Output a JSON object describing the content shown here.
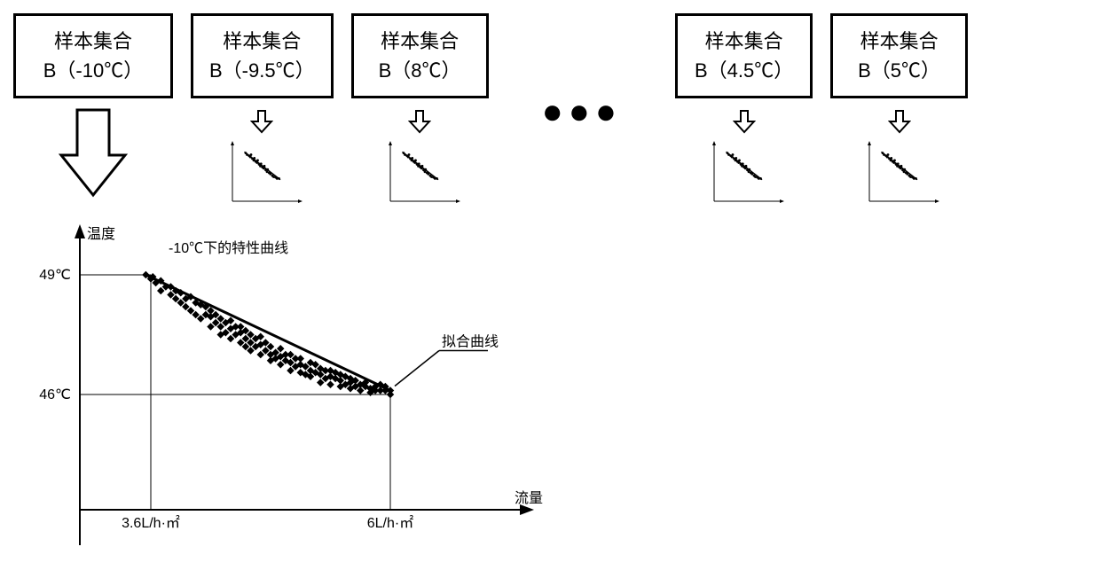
{
  "boxes": [
    {
      "line1": "样本集合",
      "line2": "B（-10℃）"
    },
    {
      "line1": "样本集合",
      "line2": "B（-9.5℃）"
    },
    {
      "line1": "样本集合",
      "line2": "B（8℃）"
    },
    {
      "line1": "样本集合",
      "line2": "B（4.5℃）"
    },
    {
      "line1": "样本集合",
      "line2": "B（5℃）"
    }
  ],
  "ellipsis": "●●●",
  "main_chart": {
    "title": "-10℃下的特性曲线",
    "y_label": "温度",
    "x_label": "流量",
    "y_ticks": [
      "49℃",
      "46℃"
    ],
    "x_ticks": [
      "3.6L/h·㎡",
      "6L/h·㎡"
    ],
    "fit_label": "拟合曲线",
    "y_tick_pos": [
      49,
      46
    ],
    "x_tick_pos": [
      3.6,
      6.0
    ],
    "xlim": [
      3.0,
      7.5
    ],
    "ylim": [
      44,
      50
    ],
    "scatter_color": "#000000",
    "line_color": "#000000",
    "axis_color": "#000000",
    "background": "#ffffff",
    "scatter": [
      [
        3.55,
        49.0
      ],
      [
        3.6,
        48.9
      ],
      [
        3.62,
        48.95
      ],
      [
        3.65,
        48.8
      ],
      [
        3.7,
        48.85
      ],
      [
        3.7,
        48.6
      ],
      [
        3.75,
        48.7
      ],
      [
        3.8,
        48.5
      ],
      [
        3.8,
        48.7
      ],
      [
        3.85,
        48.4
      ],
      [
        3.85,
        48.6
      ],
      [
        3.9,
        48.3
      ],
      [
        3.9,
        48.55
      ],
      [
        3.95,
        48.2
      ],
      [
        3.95,
        48.4
      ],
      [
        4.0,
        48.45
      ],
      [
        4.0,
        48.1
      ],
      [
        4.05,
        48.3
      ],
      [
        4.05,
        48.0
      ],
      [
        4.1,
        48.25
      ],
      [
        4.1,
        47.9
      ],
      [
        4.15,
        48.0
      ],
      [
        4.15,
        48.2
      ],
      [
        4.2,
        47.95
      ],
      [
        4.2,
        47.7
      ],
      [
        4.2,
        48.1
      ],
      [
        4.25,
        47.8
      ],
      [
        4.25,
        48.0
      ],
      [
        4.3,
        47.7
      ],
      [
        4.3,
        47.9
      ],
      [
        4.3,
        47.5
      ],
      [
        4.35,
        47.8
      ],
      [
        4.35,
        47.55
      ],
      [
        4.4,
        47.65
      ],
      [
        4.4,
        47.4
      ],
      [
        4.4,
        47.85
      ],
      [
        4.45,
        47.5
      ],
      [
        4.45,
        47.7
      ],
      [
        4.5,
        47.55
      ],
      [
        4.5,
        47.3
      ],
      [
        4.5,
        47.7
      ],
      [
        4.55,
        47.4
      ],
      [
        4.55,
        47.2
      ],
      [
        4.55,
        47.6
      ],
      [
        4.6,
        47.3
      ],
      [
        4.6,
        47.5
      ],
      [
        4.6,
        47.1
      ],
      [
        4.65,
        47.2
      ],
      [
        4.65,
        47.4
      ],
      [
        4.7,
        47.25
      ],
      [
        4.7,
        47.0
      ],
      [
        4.7,
        47.45
      ],
      [
        4.75,
        47.1
      ],
      [
        4.75,
        47.3
      ],
      [
        4.8,
        47.0
      ],
      [
        4.8,
        47.2
      ],
      [
        4.8,
        46.85
      ],
      [
        4.85,
        47.05
      ],
      [
        4.85,
        46.9
      ],
      [
        4.9,
        46.95
      ],
      [
        4.9,
        47.15
      ],
      [
        4.9,
        46.75
      ],
      [
        4.95,
        46.85
      ],
      [
        4.95,
        47.0
      ],
      [
        5.0,
        46.8
      ],
      [
        5.0,
        46.6
      ],
      [
        5.0,
        47.0
      ],
      [
        5.05,
        46.9
      ],
      [
        5.05,
        46.7
      ],
      [
        5.1,
        46.75
      ],
      [
        5.1,
        46.55
      ],
      [
        5.1,
        46.9
      ],
      [
        5.15,
        46.7
      ],
      [
        5.15,
        46.5
      ],
      [
        5.2,
        46.6
      ],
      [
        5.2,
        46.8
      ],
      [
        5.2,
        46.45
      ],
      [
        5.25,
        46.55
      ],
      [
        5.25,
        46.75
      ],
      [
        5.3,
        46.5
      ],
      [
        5.3,
        46.3
      ],
      [
        5.3,
        46.65
      ],
      [
        5.35,
        46.6
      ],
      [
        5.35,
        46.4
      ],
      [
        5.4,
        46.45
      ],
      [
        5.4,
        46.25
      ],
      [
        5.4,
        46.6
      ],
      [
        5.45,
        46.4
      ],
      [
        5.45,
        46.55
      ],
      [
        5.5,
        46.35
      ],
      [
        5.5,
        46.5
      ],
      [
        5.5,
        46.2
      ],
      [
        5.55,
        46.25
      ],
      [
        5.55,
        46.45
      ],
      [
        5.6,
        46.3
      ],
      [
        5.6,
        46.15
      ],
      [
        5.6,
        46.4
      ],
      [
        5.65,
        46.2
      ],
      [
        5.65,
        46.35
      ],
      [
        5.7,
        46.25
      ],
      [
        5.7,
        46.1
      ],
      [
        5.75,
        46.2
      ],
      [
        5.75,
        46.3
      ],
      [
        5.8,
        46.15
      ],
      [
        5.8,
        46.05
      ],
      [
        5.85,
        46.2
      ],
      [
        5.85,
        46.1
      ],
      [
        5.9,
        46.1
      ],
      [
        5.9,
        46.25
      ],
      [
        5.95,
        46.1
      ],
      [
        5.95,
        46.2
      ],
      [
        6.0,
        46.1
      ],
      [
        6.0,
        46.0
      ]
    ],
    "fit_line": [
      [
        3.55,
        49.0
      ],
      [
        6.0,
        46.1
      ]
    ]
  },
  "mini_chart": {
    "scatter": [
      [
        0.2,
        0.85
      ],
      [
        0.22,
        0.82
      ],
      [
        0.25,
        0.8
      ],
      [
        0.27,
        0.78
      ],
      [
        0.28,
        0.82
      ],
      [
        0.3,
        0.75
      ],
      [
        0.32,
        0.72
      ],
      [
        0.33,
        0.76
      ],
      [
        0.35,
        0.7
      ],
      [
        0.37,
        0.68
      ],
      [
        0.38,
        0.72
      ],
      [
        0.4,
        0.65
      ],
      [
        0.42,
        0.62
      ],
      [
        0.43,
        0.66
      ],
      [
        0.45,
        0.6
      ],
      [
        0.47,
        0.58
      ],
      [
        0.48,
        0.62
      ],
      [
        0.5,
        0.55
      ],
      [
        0.52,
        0.52
      ],
      [
        0.53,
        0.56
      ],
      [
        0.55,
        0.5
      ],
      [
        0.57,
        0.48
      ],
      [
        0.6,
        0.45
      ],
      [
        0.62,
        0.43
      ],
      [
        0.65,
        0.42
      ],
      [
        0.67,
        0.4
      ],
      [
        0.7,
        0.4
      ]
    ],
    "line": [
      [
        0.18,
        0.87
      ],
      [
        0.72,
        0.38
      ]
    ],
    "axis_color": "#000000",
    "point_color": "#000000"
  }
}
